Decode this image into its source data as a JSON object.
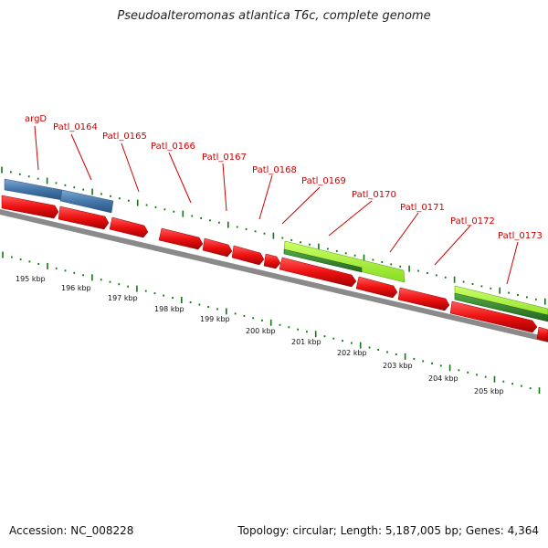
{
  "title": "Pseudoalteromonas atlantica T6c, complete genome",
  "footer": {
    "accession": "Accession: NC_008228",
    "summary": "Topology: circular; Length: 5,187,005 bp; Genes: 4,364"
  },
  "colors": {
    "forward_cds": "#ee1111",
    "reverse_cds": "#4477aa",
    "rna_gene": "#99ee22",
    "rna_gene_dark": "#339933",
    "backbone": "#888888",
    "ticks": "#117711",
    "label": "#cc0000"
  },
  "gene_labels": [
    "argD",
    "Patl_0164",
    "Patl_0165",
    "Patl_0166",
    "Patl_0167",
    "Patl_0168",
    "Patl_0169",
    "Patl_0170",
    "Patl_0171",
    "Patl_0172",
    "Patl_0173"
  ],
  "kbp_labels": [
    "195 kbp",
    "196 kbp",
    "197 kbp",
    "198 kbp",
    "199 kbp",
    "200 kbp",
    "201 kbp",
    "202 kbp",
    "203 kbp",
    "204 kbp",
    "205 kbp"
  ]
}
